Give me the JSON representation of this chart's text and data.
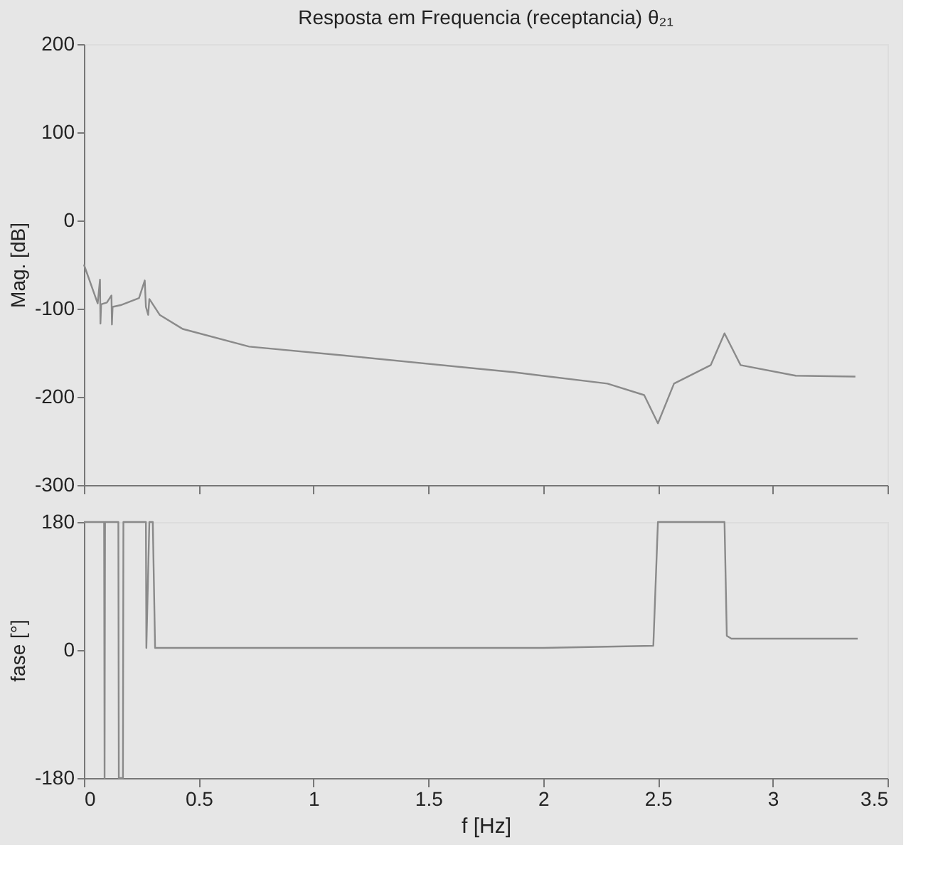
{
  "chart_data": [
    {
      "type": "line",
      "title": "Resposta em Frequencia (receptancia) θ₂₁",
      "ylabel": "Mag. [dB]",
      "xlim": [
        0,
        3.5
      ],
      "xticks": [
        0,
        0.5,
        1,
        1.5,
        2,
        2.5,
        3,
        3.5
      ],
      "ylim": [
        -300,
        200
      ],
      "yticks": [
        -300,
        -200,
        -100,
        0,
        100,
        200
      ],
      "tick_labels": "y",
      "grid": false,
      "legend": false,
      "series": [
        {
          "color": "#8a8a8a",
          "x": [
            0,
            0.06,
            0.07,
            0.072,
            0.075,
            0.1,
            0.12,
            0.122,
            0.125,
            0.16,
            0.24,
            0.265,
            0.27,
            0.28,
            0.285,
            0.33,
            0.43,
            0.72,
            1.13,
            1.75,
            1.87,
            2.28,
            2.44,
            2.5,
            2.57,
            2.73,
            2.79,
            2.86,
            3.1,
            3.36
          ],
          "values": [
            -50,
            -94,
            -67,
            -117,
            -95,
            -93,
            -85,
            -118,
            -98,
            -96,
            -88,
            -68,
            -98,
            -107,
            -89,
            -107,
            -123,
            -143,
            -153,
            -169,
            -172,
            -185,
            -198,
            -230,
            -185,
            -164,
            -128,
            -164,
            -176,
            -177
          ]
        }
      ]
    },
    {
      "type": "line",
      "xlabel": "f [Hz]",
      "ylabel": "fase [°]",
      "xlim": [
        0,
        3.5
      ],
      "xticks": [
        0,
        0.5,
        1,
        1.5,
        2,
        2.5,
        3,
        3.5
      ],
      "ylim": [
        -180,
        180
      ],
      "yticks": [
        -180,
        0,
        180
      ],
      "grid": false,
      "legend": false,
      "series": [
        {
          "color": "#8a8a8a",
          "x": [
            0,
            0.088,
            0.089,
            0.09,
            0.092,
            0.15,
            0.152,
            0.17,
            0.172,
            0.27,
            0.272,
            0.285,
            0.3,
            0.31,
            1.0,
            2.0,
            2.48,
            2.5,
            2.79,
            2.8,
            2.82,
            3.37
          ],
          "values": [
            180,
            180,
            0,
            -180,
            180,
            180,
            -180,
            -180,
            180,
            180,
            3,
            180,
            180,
            3,
            3,
            3,
            6,
            180,
            180,
            20,
            16,
            16
          ]
        }
      ]
    }
  ]
}
